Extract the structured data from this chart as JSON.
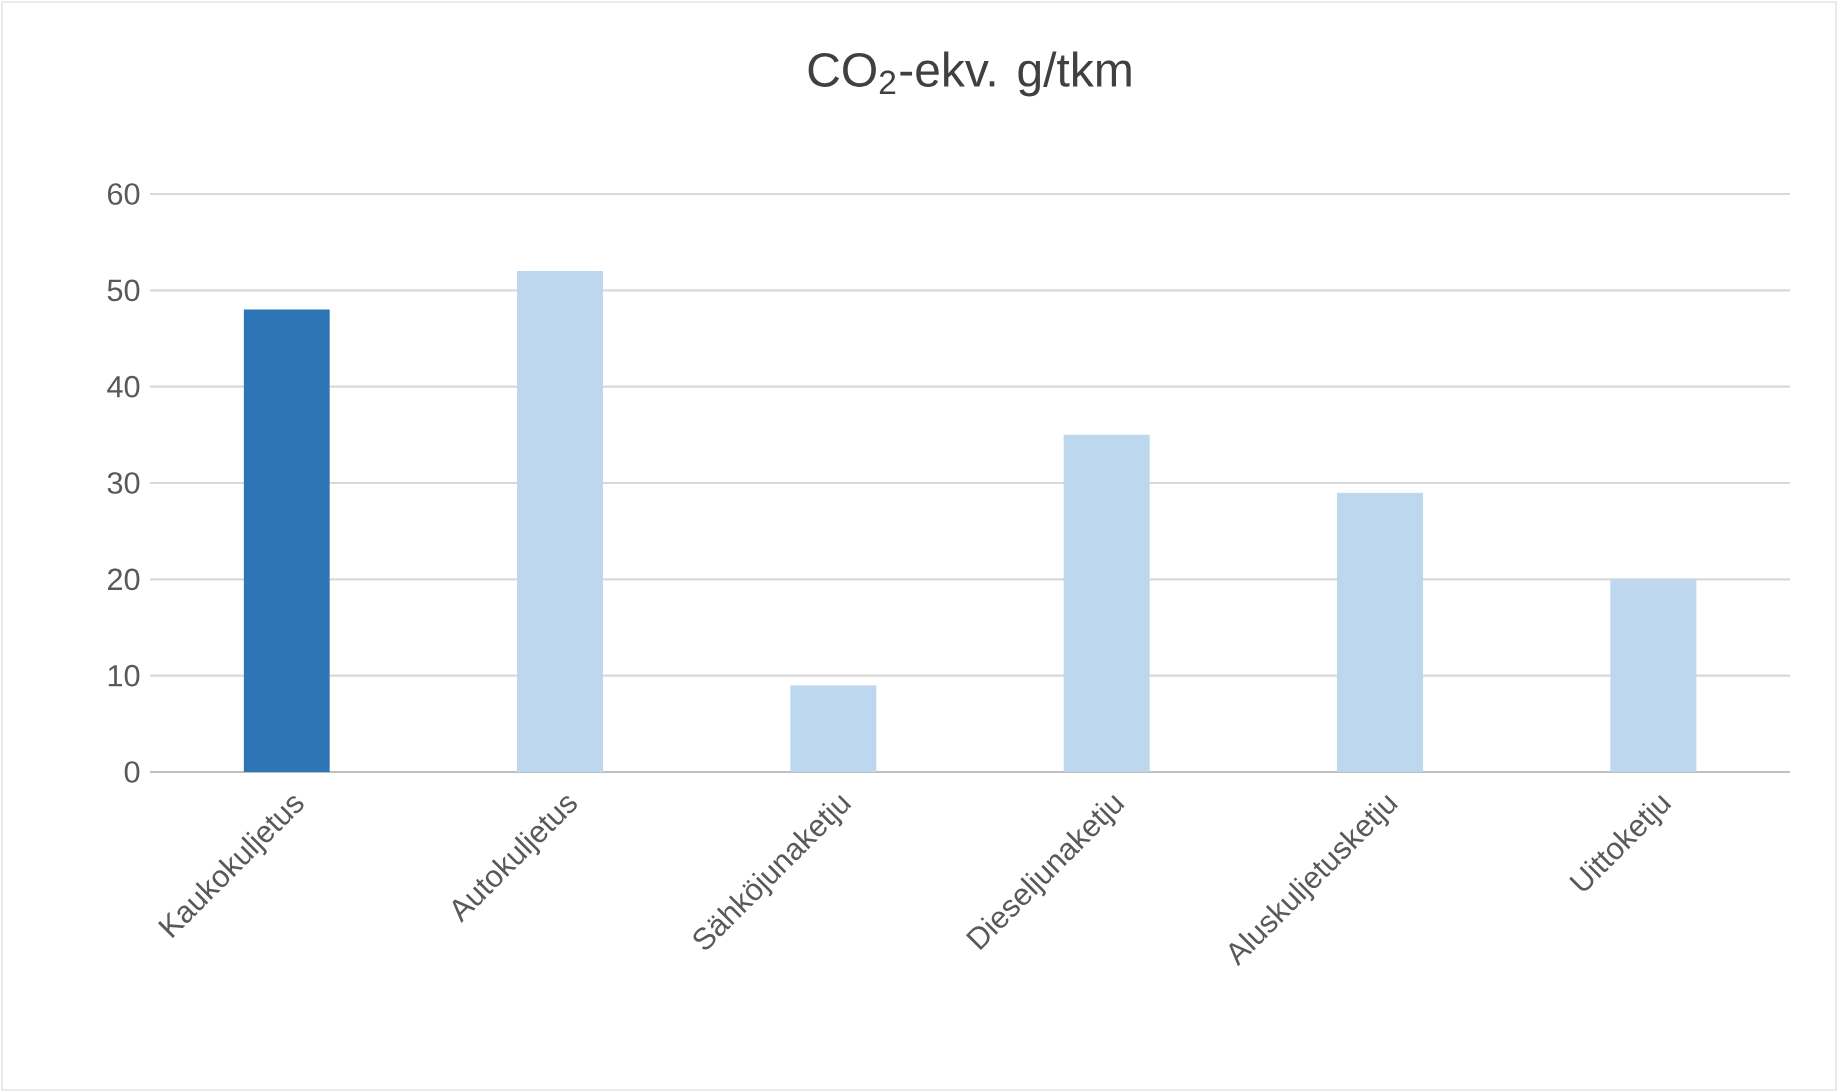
{
  "chart_data": {
    "type": "bar",
    "title": "CO$_{2}$-ekv. g/tkm",
    "categories": [
      "Kaukokuljetus",
      "Autokuljetus",
      "Sähköjunaketju",
      "Dieseljunaketju",
      "Aluskuljetusketju",
      "Uittoketju"
    ],
    "values": [
      48,
      52,
      9,
      35,
      29,
      20
    ],
    "colors": [
      "#2e75b6",
      "#bdd7ee",
      "#bdd7ee",
      "#bdd7ee",
      "#bdd7ee",
      "#bdd7ee"
    ],
    "ylim": [
      0,
      60
    ],
    "yticks": [
      0,
      10,
      20,
      30,
      40,
      50,
      60
    ],
    "grid": "y"
  }
}
